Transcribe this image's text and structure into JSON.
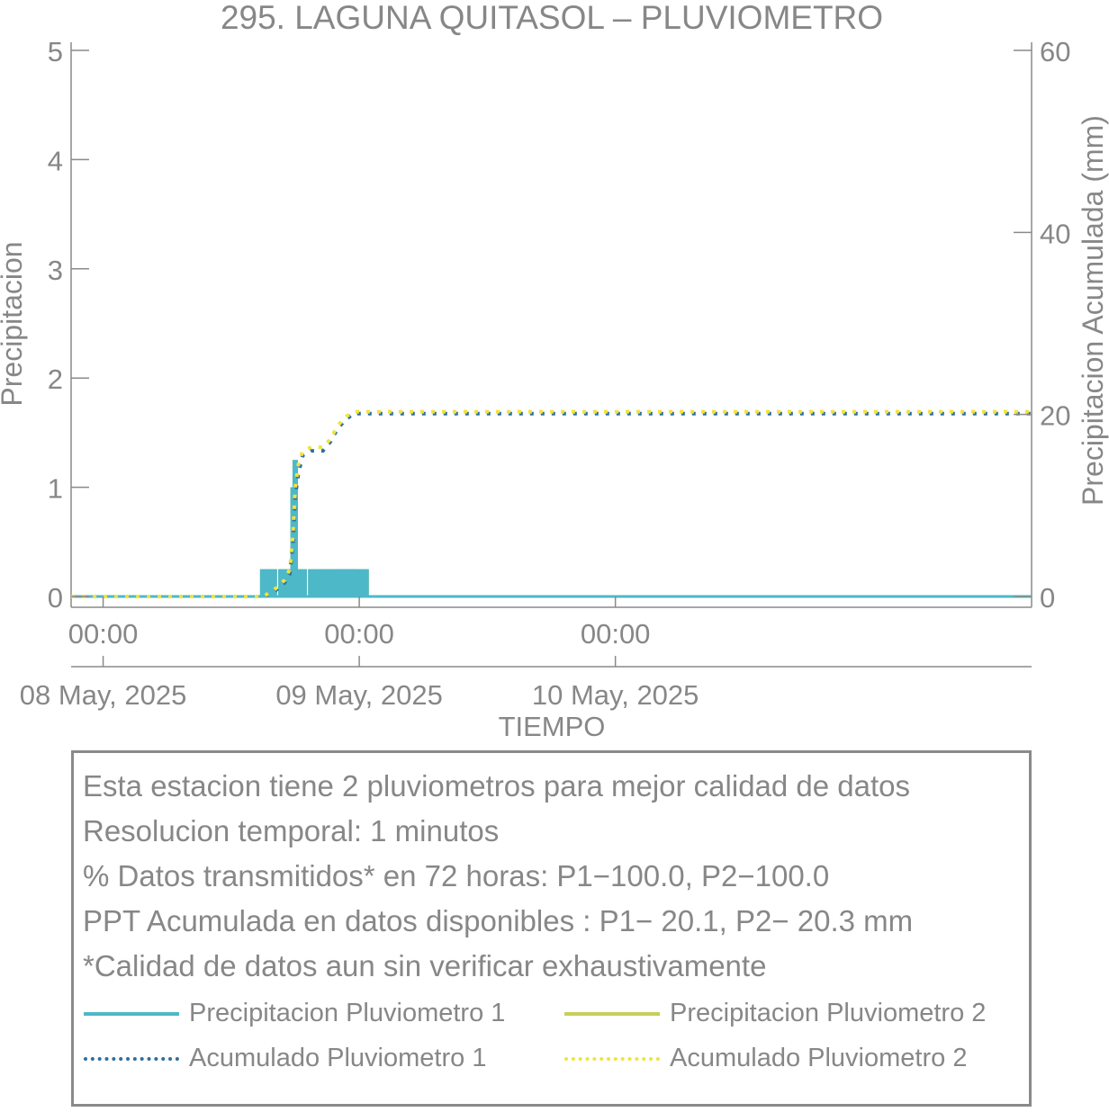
{
  "chart_data": {
    "type": "bar",
    "title": "295. LAGUNA QUITASOL – PLUVIOMETRO",
    "xlabel": "TIEMPO",
    "ylabel": "Precipitacion",
    "y2label": "Precipitacion Acumulada (mm)",
    "ylim": [
      0,
      5
    ],
    "y2lim": [
      0,
      60
    ],
    "yticks": [
      0,
      1,
      2,
      3,
      4,
      5
    ],
    "y2ticks": [
      0,
      20,
      40,
      60
    ],
    "xlim_hours": [
      -3,
      87
    ],
    "xticks": [
      {
        "hour": 0,
        "time": "00:00",
        "date": "08 May, 2025"
      },
      {
        "hour": 24,
        "time": "00:00",
        "date": "09 May, 2025"
      },
      {
        "hour": 48,
        "time": "00:00",
        "date": "10 May, 2025"
      }
    ],
    "grid": false,
    "series": [
      {
        "name": "Precipitacion Pluviometro 1",
        "kind": "bar",
        "axis": "left",
        "color": "#4db8c8",
        "points": [
          [
            15.5,
            0.25
          ],
          [
            17.2,
            0.25
          ],
          [
            17.8,
            1.0
          ],
          [
            18.0,
            1.25
          ],
          [
            18.3,
            0.25
          ],
          [
            20.0,
            0.25
          ],
          [
            21.5,
            0.25
          ],
          [
            22.5,
            0.25
          ],
          [
            23.0,
            0.25
          ],
          [
            24.1,
            0.25
          ]
        ]
      },
      {
        "name": "Precipitacion Pluviometro 2",
        "kind": "bar",
        "axis": "left",
        "color": "#c8cf5a",
        "points": [
          [
            15.5,
            0.25
          ],
          [
            17.2,
            0.25
          ],
          [
            17.8,
            1.0
          ],
          [
            18.0,
            1.25
          ],
          [
            18.3,
            0.25
          ],
          [
            20.0,
            0.25
          ],
          [
            21.5,
            0.25
          ],
          [
            22.5,
            0.25
          ],
          [
            24.1,
            0.25
          ]
        ]
      },
      {
        "name": "Acumulado Pluviometro 1",
        "kind": "line",
        "axis": "right",
        "color": "#2e6f9e",
        "points": [
          [
            -3,
            0
          ],
          [
            15.0,
            0
          ],
          [
            16.0,
            0.5
          ],
          [
            17.0,
            1.5
          ],
          [
            17.5,
            2.5
          ],
          [
            17.8,
            6
          ],
          [
            18.0,
            11
          ],
          [
            18.3,
            13.5
          ],
          [
            18.7,
            15.5
          ],
          [
            19.5,
            16.0
          ],
          [
            20.6,
            16.0
          ],
          [
            21.3,
            17.0
          ],
          [
            22.0,
            18.5
          ],
          [
            22.8,
            19.5
          ],
          [
            23.5,
            20.1
          ],
          [
            87,
            20.1
          ]
        ]
      },
      {
        "name": "Acumulado Pluviometro 2",
        "kind": "line",
        "axis": "right",
        "color": "#f2e33a",
        "points": [
          [
            -3,
            0
          ],
          [
            15.0,
            0
          ],
          [
            16.0,
            0.7
          ],
          [
            17.0,
            1.8
          ],
          [
            17.5,
            3
          ],
          [
            17.8,
            7
          ],
          [
            18.0,
            12
          ],
          [
            18.3,
            14.5
          ],
          [
            18.7,
            16.0
          ],
          [
            19.5,
            16.4
          ],
          [
            20.6,
            16.4
          ],
          [
            21.3,
            17.3
          ],
          [
            22.0,
            18.8
          ],
          [
            22.8,
            19.8
          ],
          [
            23.5,
            20.3
          ],
          [
            87,
            20.3
          ]
        ]
      }
    ]
  },
  "info": {
    "lines": [
      "Esta estacion tiene 2 pluviometros para mejor calidad de datos",
      "Resolucion temporal: 1 minutos",
      "% Datos transmitidos* en 72 horas: P1−100.0, P2−100.0",
      "PPT Acumulada en datos disponibles : P1− 20.1, P2− 20.3 mm",
      "*Calidad de datos aun sin verificar exhaustivamente"
    ]
  },
  "legend": {
    "items": [
      {
        "label": "Precipitacion Pluviometro 1",
        "style": "solid",
        "color": "#4db8c8"
      },
      {
        "label": "Precipitacion Pluviometro 2",
        "style": "solid",
        "color": "#c8cf5a"
      },
      {
        "label": "Acumulado Pluviometro 1",
        "style": "dotted",
        "color": "#2e6f9e"
      },
      {
        "label": "Acumulado Pluviometro 2",
        "style": "dotted",
        "color": "#f2e33a"
      }
    ]
  }
}
